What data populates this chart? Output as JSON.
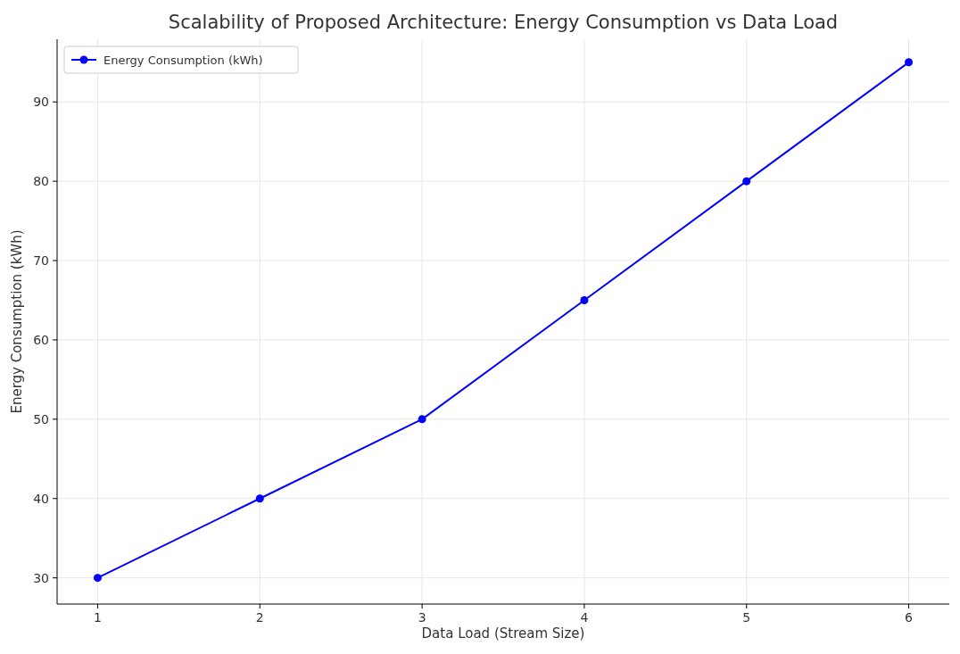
{
  "chart_data": {
    "type": "line",
    "title": "Scalability of Proposed Architecture: Energy Consumption vs Data Load",
    "xlabel": "Data Load (Stream Size)",
    "ylabel": "Energy Consumption (kWh)",
    "x": [
      1,
      2,
      3,
      4,
      5,
      6
    ],
    "series": [
      {
        "name": "Energy Consumption (kWh)",
        "color": "#0000ff",
        "values": [
          30,
          40,
          50,
          65,
          80,
          95
        ]
      }
    ],
    "xlim": [
      0.75,
      6.25
    ],
    "ylim": [
      26.7,
      97.9
    ],
    "xticks": [
      1,
      2,
      3,
      4,
      5,
      6
    ],
    "yticks": [
      30,
      40,
      50,
      60,
      70,
      80,
      90
    ],
    "grid": true,
    "legend": "top left",
    "marker": "circle",
    "line_style": "solid"
  }
}
